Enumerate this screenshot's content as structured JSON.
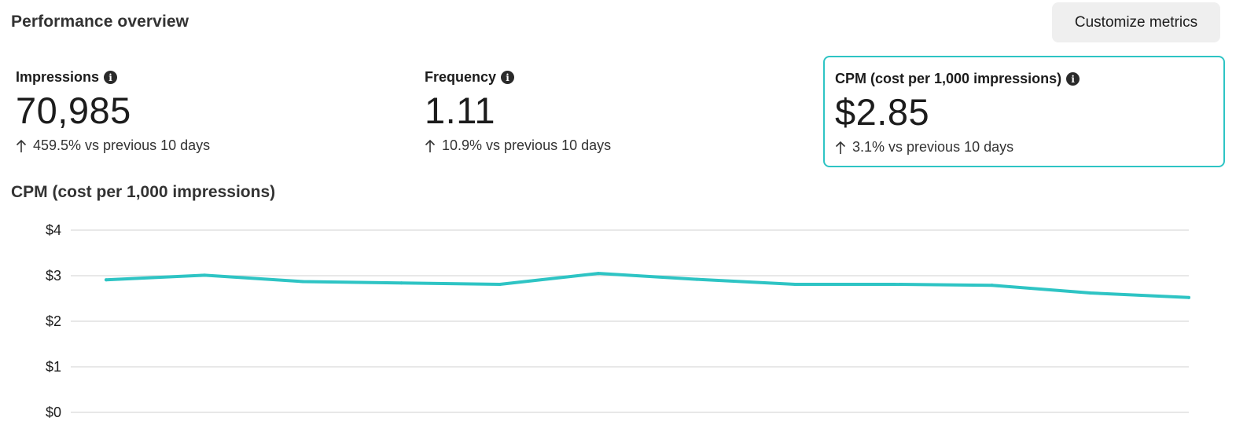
{
  "header": {
    "title": "Performance overview",
    "customize_label": "Customize metrics"
  },
  "metrics": [
    {
      "label": "Impressions",
      "value": "70,985",
      "change_icon": "arrow-up-icon",
      "change": "459.5% vs previous 10 days",
      "selected": false
    },
    {
      "label": "Frequency",
      "value": "1.11",
      "change_icon": "arrow-up-icon",
      "change": "10.9% vs previous 10 days",
      "selected": false
    },
    {
      "label": "CPM (cost per 1,000 impressions)",
      "value": "$2.85",
      "change_icon": "arrow-up-icon",
      "change": "3.1% vs previous 10 days",
      "selected": true
    }
  ],
  "colors": {
    "accent": "#2ec4c4",
    "gridline": "#d9d9d9",
    "button_bg": "#efefef"
  },
  "chart_data": {
    "type": "line",
    "title": "CPM (cost per 1,000 impressions)",
    "xlabel": "",
    "ylabel": "",
    "ylim": [
      0,
      4
    ],
    "y_ticks": [
      "$0",
      "$1",
      "$2",
      "$3",
      "$4"
    ],
    "grid": true,
    "x": [
      1,
      2,
      3,
      4,
      5,
      6,
      7,
      8,
      9,
      10,
      11,
      12
    ],
    "series": [
      {
        "values": [
          2.91,
          3.01,
          2.87,
          2.84,
          2.81,
          3.05,
          2.92,
          2.81,
          2.81,
          2.79,
          2.62,
          2.52
        ]
      }
    ]
  }
}
